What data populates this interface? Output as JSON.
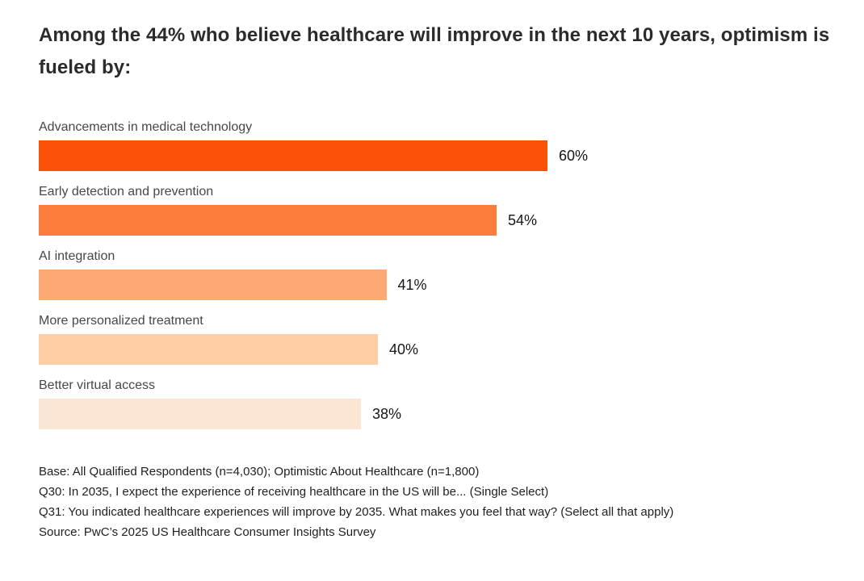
{
  "chart_data": {
    "type": "bar",
    "orientation": "horizontal",
    "title": "Among the 44% who believe healthcare will improve in the next 10 years, optimism is fueled by:",
    "categories": [
      "Advancements in medical technology",
      "Early detection and prevention",
      "AI integration",
      "More personalized treatment",
      "Better virtual access"
    ],
    "values": [
      60,
      54,
      41,
      40,
      38
    ],
    "value_labels": [
      "60%",
      "54%",
      "41%",
      "40%",
      "38%"
    ],
    "bar_colors": [
      "#FB5108",
      "#FB7C3D",
      "#FEA873",
      "#FECDA4",
      "#FBE5D3"
    ],
    "xlim": [
      0,
      100
    ],
    "grid": false,
    "legend": false,
    "value_label_position": "right-of-bar"
  },
  "footnotes": [
    "Base: All Qualified Respondents (n=4,030); Optimistic About Healthcare (n=1,800)",
    "Q30: In 2035, I expect the experience of receiving healthcare in the US will be... (Single Select)",
    "Q31: You indicated healthcare experiences will improve by 2035. What makes you feel that way? (Select all that apply)",
    "Source: PwC’s 2025 US Healthcare Consumer Insights Survey"
  ],
  "colors": {
    "title_text": "#2B2B2B",
    "category_label_text": "#474748",
    "value_text": "#161616",
    "footnote_text": "#1F1F1F",
    "background": "#FFFFFF"
  }
}
